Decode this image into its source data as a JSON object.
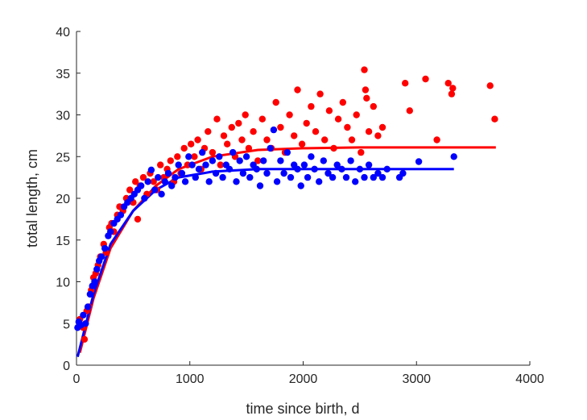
{
  "chart_data": {
    "type": "scatter",
    "title": "",
    "xlabel": "time since birth, d",
    "ylabel": "total length, cm",
    "xlim": [
      0,
      4000
    ],
    "ylim": [
      0,
      40
    ],
    "x_ticks": [
      "0",
      "1000",
      "2000",
      "3000",
      "4000"
    ],
    "y_ticks": [
      "0",
      "5",
      "10",
      "15",
      "20",
      "25",
      "30",
      "35",
      "40"
    ],
    "grid": false,
    "legend": "none",
    "series": [
      {
        "color": "#ff0000",
        "points": [
          [
            30,
            5.5
          ],
          [
            60,
            4.5
          ],
          [
            70,
            3.1
          ],
          [
            90,
            6.5
          ],
          [
            110,
            7.0
          ],
          [
            130,
            9.0
          ],
          [
            150,
            10.5
          ],
          [
            170,
            11.0
          ],
          [
            190,
            12.0
          ],
          [
            210,
            13.0
          ],
          [
            240,
            14.5
          ],
          [
            260,
            13.5
          ],
          [
            290,
            16.5
          ],
          [
            310,
            17.0
          ],
          [
            330,
            16.0
          ],
          [
            360,
            18.0
          ],
          [
            380,
            19.0
          ],
          [
            410,
            18.5
          ],
          [
            440,
            20.0
          ],
          [
            470,
            21.0
          ],
          [
            500,
            19.5
          ],
          [
            520,
            22.0
          ],
          [
            540,
            17.5
          ],
          [
            560,
            21.5
          ],
          [
            590,
            22.5
          ],
          [
            620,
            20.5
          ],
          [
            650,
            23.0
          ],
          [
            680,
            22.0
          ],
          [
            710,
            21.0
          ],
          [
            740,
            24.0
          ],
          [
            770,
            22.5
          ],
          [
            800,
            23.5
          ],
          [
            830,
            24.5
          ],
          [
            860,
            22.0
          ],
          [
            890,
            25.0
          ],
          [
            920,
            23.0
          ],
          [
            950,
            26.0
          ],
          [
            980,
            24.0
          ],
          [
            1010,
            26.5
          ],
          [
            1040,
            25.0
          ],
          [
            1070,
            27.0
          ],
          [
            1100,
            23.5
          ],
          [
            1130,
            26.0
          ],
          [
            1160,
            28.0
          ],
          [
            1200,
            25.5
          ],
          [
            1240,
            29.5
          ],
          [
            1270,
            24.0
          ],
          [
            1300,
            27.5
          ],
          [
            1330,
            26.5
          ],
          [
            1370,
            28.5
          ],
          [
            1400,
            25.0
          ],
          [
            1430,
            29.0
          ],
          [
            1460,
            27.0
          ],
          [
            1490,
            30.0
          ],
          [
            1520,
            26.0
          ],
          [
            1560,
            28.0
          ],
          [
            1600,
            24.5
          ],
          [
            1640,
            29.5
          ],
          [
            1680,
            27.0
          ],
          [
            1720,
            26.0
          ],
          [
            1760,
            31.5
          ],
          [
            1800,
            28.5
          ],
          [
            1840,
            25.5
          ],
          [
            1880,
            30.0
          ],
          [
            1920,
            27.5
          ],
          [
            1950,
            33.0
          ],
          [
            1990,
            26.5
          ],
          [
            2030,
            29.0
          ],
          [
            2070,
            31.0
          ],
          [
            2110,
            28.0
          ],
          [
            2150,
            32.5
          ],
          [
            2190,
            27.0
          ],
          [
            2230,
            30.5
          ],
          [
            2270,
            26.0
          ],
          [
            2310,
            29.5
          ],
          [
            2350,
            31.5
          ],
          [
            2390,
            28.5
          ],
          [
            2430,
            27.0
          ],
          [
            2470,
            30.0
          ],
          [
            2510,
            25.5
          ],
          [
            2540,
            35.4
          ],
          [
            2550,
            33.0
          ],
          [
            2560,
            32.0
          ],
          [
            2580,
            28.0
          ],
          [
            2620,
            31.0
          ],
          [
            2660,
            27.5
          ],
          [
            2700,
            28.5
          ],
          [
            2900,
            33.8
          ],
          [
            2940,
            30.5
          ],
          [
            3080,
            34.3
          ],
          [
            3180,
            27.0
          ],
          [
            3280,
            33.8
          ],
          [
            3310,
            32.5
          ],
          [
            3320,
            33.2
          ],
          [
            3650,
            33.5
          ],
          [
            3690,
            29.5
          ]
        ],
        "fit": [
          [
            30,
            1.5
          ],
          [
            150,
            8.0
          ],
          [
            300,
            14.0
          ],
          [
            500,
            18.5
          ],
          [
            700,
            21.5
          ],
          [
            900,
            23.5
          ],
          [
            1200,
            25.0
          ],
          [
            1600,
            25.8
          ],
          [
            2000,
            26.0
          ],
          [
            2500,
            26.1
          ],
          [
            3000,
            26.1
          ],
          [
            3700,
            26.1
          ]
        ]
      },
      {
        "color": "#0000ff",
        "points": [
          [
            10,
            4.5
          ],
          [
            20,
            5.2
          ],
          [
            40,
            4.8
          ],
          [
            60,
            6.0
          ],
          [
            80,
            5.0
          ],
          [
            100,
            7.0
          ],
          [
            120,
            8.5
          ],
          [
            140,
            9.5
          ],
          [
            160,
            10.0
          ],
          [
            180,
            11.5
          ],
          [
            200,
            12.5
          ],
          [
            220,
            13.0
          ],
          [
            250,
            14.0
          ],
          [
            280,
            15.5
          ],
          [
            300,
            16.0
          ],
          [
            330,
            17.0
          ],
          [
            360,
            17.5
          ],
          [
            390,
            18.0
          ],
          [
            420,
            19.0
          ],
          [
            450,
            19.5
          ],
          [
            480,
            20.0
          ],
          [
            510,
            20.5
          ],
          [
            540,
            21.0
          ],
          [
            570,
            21.5
          ],
          [
            600,
            20.0
          ],
          [
            630,
            22.0
          ],
          [
            660,
            23.4
          ],
          [
            690,
            21.0
          ],
          [
            720,
            22.5
          ],
          [
            750,
            20.5
          ],
          [
            780,
            22.0
          ],
          [
            810,
            23.0
          ],
          [
            840,
            21.5
          ],
          [
            870,
            22.5
          ],
          [
            900,
            24.0
          ],
          [
            930,
            23.0
          ],
          [
            960,
            22.0
          ],
          [
            990,
            25.0
          ],
          [
            1020,
            24.0
          ],
          [
            1050,
            22.5
          ],
          [
            1080,
            23.5
          ],
          [
            1110,
            25.5
          ],
          [
            1140,
            24.0
          ],
          [
            1170,
            22.0
          ],
          [
            1200,
            24.5
          ],
          [
            1230,
            23.0
          ],
          [
            1260,
            25.0
          ],
          [
            1290,
            22.5
          ],
          [
            1320,
            24.0
          ],
          [
            1350,
            23.5
          ],
          [
            1380,
            25.5
          ],
          [
            1410,
            22.0
          ],
          [
            1440,
            24.5
          ],
          [
            1470,
            23.0
          ],
          [
            1500,
            25.0
          ],
          [
            1530,
            22.5
          ],
          [
            1560,
            24.0
          ],
          [
            1590,
            23.5
          ],
          [
            1620,
            21.5
          ],
          [
            1650,
            24.5
          ],
          [
            1680,
            23.0
          ],
          [
            1710,
            26.0
          ],
          [
            1740,
            28.2
          ],
          [
            1770,
            22.0
          ],
          [
            1800,
            24.5
          ],
          [
            1830,
            23.0
          ],
          [
            1860,
            25.5
          ],
          [
            1890,
            22.5
          ],
          [
            1920,
            24.0
          ],
          [
            1950,
            23.5
          ],
          [
            1980,
            21.5
          ],
          [
            2010,
            24.0
          ],
          [
            2040,
            22.5
          ],
          [
            2070,
            25.0
          ],
          [
            2100,
            23.5
          ],
          [
            2140,
            22.0
          ],
          [
            2180,
            24.5
          ],
          [
            2220,
            23.0
          ],
          [
            2260,
            22.5
          ],
          [
            2300,
            24.0
          ],
          [
            2340,
            23.5
          ],
          [
            2380,
            22.5
          ],
          [
            2420,
            24.5
          ],
          [
            2460,
            22.0
          ],
          [
            2500,
            23.5
          ],
          [
            2540,
            22.5
          ],
          [
            2580,
            24.0
          ],
          [
            2620,
            22.5
          ],
          [
            2660,
            23.0
          ],
          [
            2700,
            22.5
          ],
          [
            2740,
            23.5
          ],
          [
            2850,
            22.5
          ],
          [
            2880,
            23.0
          ],
          [
            3020,
            24.4
          ],
          [
            3330,
            25.0
          ]
        ],
        "fit": [
          [
            10,
            1.0
          ],
          [
            150,
            8.5
          ],
          [
            300,
            14.5
          ],
          [
            500,
            18.5
          ],
          [
            700,
            21.0
          ],
          [
            900,
            22.5
          ],
          [
            1200,
            23.2
          ],
          [
            1600,
            23.5
          ],
          [
            2000,
            23.5
          ],
          [
            2500,
            23.5
          ],
          [
            3000,
            23.5
          ],
          [
            3330,
            23.5
          ]
        ]
      }
    ]
  }
}
